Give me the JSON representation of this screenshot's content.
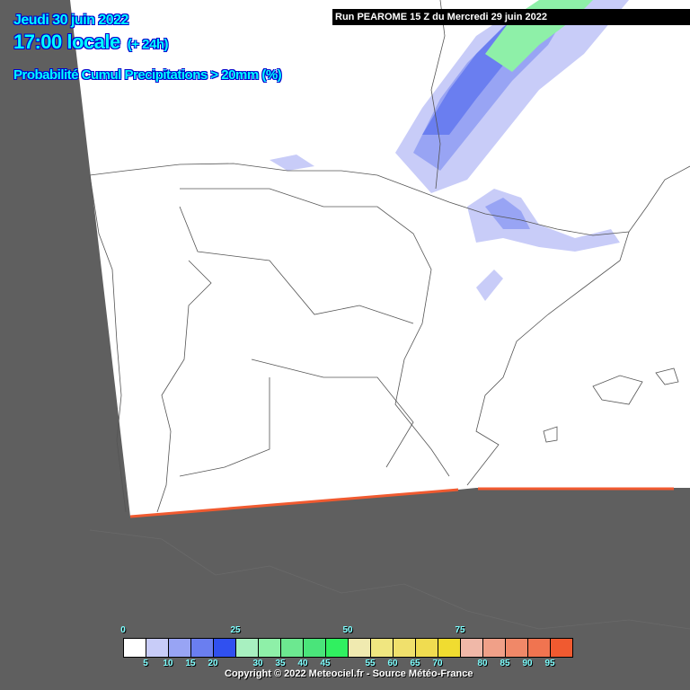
{
  "header": {
    "date": "Jeudi 30 juin 2022",
    "time": "17:00 locale",
    "lead": "(+ 24h)",
    "parameter": "Probabilité Cumul Precipitations > 20mm (%)",
    "run": "Run PEAROME 15 Z du Mercredi 29 juin 2022"
  },
  "colors": {
    "background": "#5f5f5f",
    "domain": "#ffffff",
    "border_lines": "#555555",
    "title_text": "#00ffff",
    "domain_edge": "#f05a30"
  },
  "legend": {
    "top_labels": [
      "0",
      "25",
      "50",
      "75"
    ],
    "bottom_labels": [
      "5",
      "10",
      "15",
      "20",
      "30",
      "35",
      "40",
      "45",
      "55",
      "60",
      "65",
      "70",
      "80",
      "85",
      "90",
      "95"
    ],
    "colors": [
      "#ffffff",
      "#c8ccf8",
      "#98a4f4",
      "#6a7ef0",
      "#3050f0",
      "#a8f0c0",
      "#8ef0a8",
      "#6ce890",
      "#4ae47a",
      "#30f060",
      "#f0eab0",
      "#f0e680",
      "#f0e06c",
      "#f0dc50",
      "#f0dc30",
      "#f0b8a8",
      "#f0a088",
      "#f08868",
      "#f07450",
      "#f05a30"
    ]
  },
  "copyright": "Copyright © 2022 Meteociel.fr - Source Météo-France"
}
